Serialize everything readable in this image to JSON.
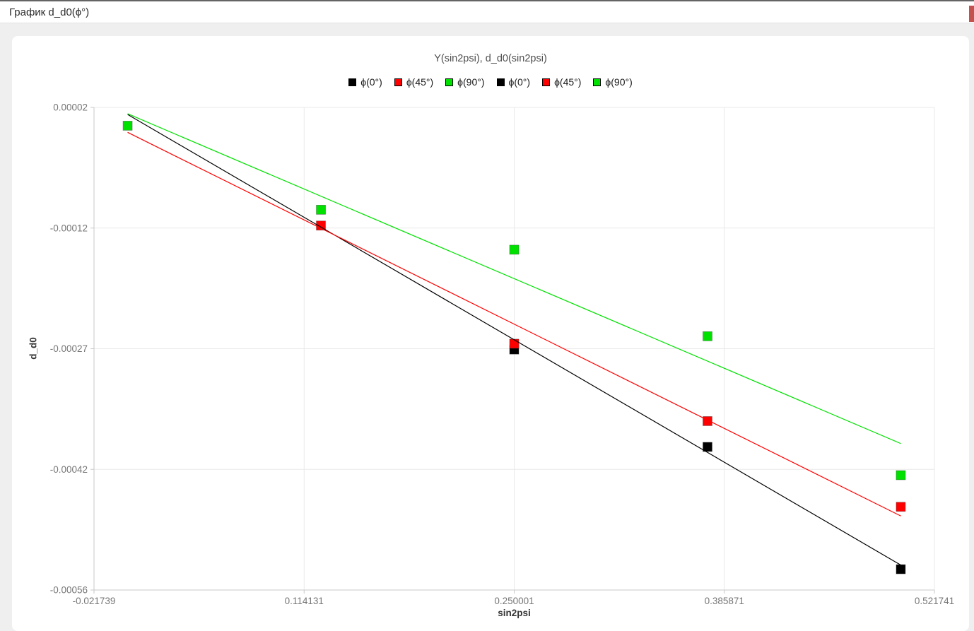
{
  "window": {
    "title": "График d_d0(ϕ°)"
  },
  "scrollbar": {
    "marker_color": "#c4514d"
  },
  "chart_data": {
    "type": "scatter",
    "title": "Y(sin2psi), d_d0(sin2psi)",
    "xlabel": "sin2psi",
    "ylabel": "d_d0",
    "xlim": [
      -0.021739,
      0.521741
    ],
    "ylim": [
      -0.00056,
      2e-05
    ],
    "grid": true,
    "legend_position": "top",
    "x_ticks": {
      "values": [
        -0.021739,
        0.114131,
        0.250001,
        0.385871,
        0.521741
      ],
      "labels": [
        "-0.021739",
        "0.114131",
        "0.250001",
        "0.385871",
        "0.521741"
      ]
    },
    "y_ticks": {
      "values": [
        2e-05,
        -0.000125,
        -0.00027,
        -0.000415,
        -0.00056
      ],
      "labels": [
        "0.00002",
        "-0.00012",
        "-0.00027",
        "-0.00042",
        "-0.00056"
      ]
    },
    "legend": [
      {
        "label": "ϕ(0°)",
        "color": "#000000"
      },
      {
        "label": "ϕ(45°)",
        "color": "#ff0000"
      },
      {
        "label": "ϕ(90°)",
        "color": "#00e100"
      },
      {
        "label": "ϕ(0°)",
        "color": "#000000"
      },
      {
        "label": "ϕ(45°)",
        "color": "#ff0000"
      },
      {
        "label": "ϕ(90°)",
        "color": "#00e100"
      }
    ],
    "scatter_series": [
      {
        "name": "ϕ(0°)",
        "color": "#000000",
        "marker": "square",
        "points": [
          [
            0.25,
            -0.000271
          ],
          [
            0.375,
            -0.000388
          ],
          [
            0.5,
            -0.000535
          ]
        ]
      },
      {
        "name": "ϕ(45°)",
        "color": "#ff0000",
        "marker": "square",
        "points": [
          [
            0.125,
            -0.000122
          ],
          [
            0.25,
            -0.000264
          ],
          [
            0.375,
            -0.000357
          ],
          [
            0.5,
            -0.00046
          ]
        ]
      },
      {
        "name": "ϕ(90°)",
        "color": "#00e100",
        "marker": "square",
        "points": [
          [
            0.0,
            -2e-06
          ],
          [
            0.125,
            -0.000103
          ],
          [
            0.25,
            -0.000151
          ],
          [
            0.375,
            -0.000255
          ],
          [
            0.5,
            -0.000422
          ]
        ]
      }
    ],
    "line_series": [
      {
        "name": "ϕ(0°)",
        "color": "#000000",
        "points": [
          [
            0.0,
            1.15e-05
          ],
          [
            0.5,
            -0.00053
          ]
        ]
      },
      {
        "name": "ϕ(45°)",
        "color": "#ff0000",
        "points": [
          [
            0.0,
            -1e-05
          ],
          [
            0.5,
            -0.000471
          ]
        ]
      },
      {
        "name": "ϕ(90°)",
        "color": "#00e100",
        "points": [
          [
            0.0,
            1.24e-05
          ],
          [
            0.5,
            -0.000384
          ]
        ]
      }
    ],
    "style": {
      "gridline_color": "#e9e9e9",
      "axis_color": "#c9c9c9",
      "tick_label_color": "#767676"
    }
  }
}
